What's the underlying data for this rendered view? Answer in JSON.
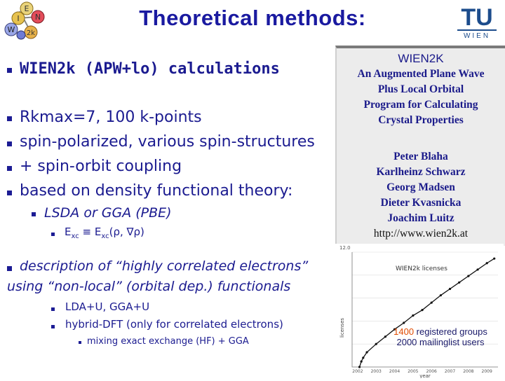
{
  "header": {
    "title": "Theoretical methods:",
    "logo_left_letters": [
      "W",
      "I",
      "E",
      "N",
      "2k"
    ],
    "logo_right_top": "TU",
    "logo_right_bottom": "W I E N"
  },
  "bullets": {
    "b1": "WIEN2k (APW+lo) calculations",
    "b2": "Rkmax=7, 100 k-points",
    "b3": "spin-polarized, various spin-structures",
    "b4": "+ spin-orbit coupling",
    "b5": "based on density functional theory:",
    "b5_sub": "LSDA or GGA (PBE)",
    "b5_subsub_left": "E",
    "b5_subsub_sub1": "xc",
    "b5_subsub_mid": "≡ E",
    "b5_subsub_sub2": "xc",
    "b5_subsub_right": "(ρ, ∇ρ)",
    "b6_line1": "description of “highly correlated electrons”",
    "b6_line2": "using “non-local” (orbital dep.) functionals",
    "b6_sub1": "LDA+U, GGA+U",
    "b6_sub2": "hybrid-DFT (only for correlated electrons)",
    "b6_subsub": "mixing exact exchange (HF) + GGA"
  },
  "panel": {
    "title": "WIEN2K",
    "desc_lines": [
      "An Augmented Plane Wave",
      "Plus Local Orbital",
      "Program for Calculating",
      "Crystal Properties"
    ],
    "authors": [
      "Peter Blaha",
      "Karlheinz Schwarz",
      "Georg Madsen",
      "Dieter Kvasnicka",
      "Joachim Luitz"
    ],
    "url": "http://www.wien2k.at"
  },
  "chart_data": {
    "type": "line",
    "title": "WIEN2k licenses",
    "xlabel": "year",
    "ylabel": "licenses",
    "x_ticks": [
      "2002",
      "2003",
      "2004",
      "2005",
      "2006",
      "2007",
      "2008",
      "2009"
    ],
    "y_tick_top": "12.0",
    "x": [
      2002.1,
      2002.2,
      2002.3,
      2002.5,
      2003.0,
      2003.5,
      2004.0,
      2004.5,
      2005.0,
      2005.5,
      2006.0,
      2006.5,
      2007.0,
      2007.5,
      2008.0,
      2008.5,
      2009.0,
      2009.4
    ],
    "y": [
      0,
      60,
      100,
      160,
      250,
      330,
      410,
      480,
      560,
      620,
      700,
      780,
      850,
      920,
      990,
      1060,
      1130,
      1180
    ],
    "ylim": [
      0,
      1250
    ],
    "xlim": [
      2001.7,
      2009.6
    ]
  },
  "caption": {
    "count": "1400",
    "line1_rest": " registered groups",
    "line2": "2000 mailinglist users"
  },
  "colors": {
    "text": "#1b1b90",
    "accent_orange": "#e04a00",
    "panel_bg": "#ececec"
  }
}
